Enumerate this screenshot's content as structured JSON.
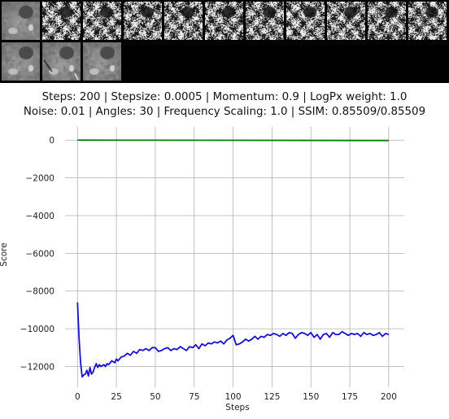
{
  "thumbnails": {
    "rows": [
      {
        "tiles": [
          "grayscale-source",
          "noise",
          "noise",
          "noise",
          "noise",
          "noise",
          "noise",
          "noise",
          "noise",
          "noise",
          "noise"
        ]
      },
      {
        "tiles": [
          "grayscale-source",
          "grayscale-source-annotated",
          "grayscale-source"
        ]
      }
    ]
  },
  "chart_data": {
    "type": "line",
    "title": "Steps: 200 | Stepsize: 0.0005 | Momentum: 0.9 | LogPx weight: 1.0",
    "subtitle": "Noise: 0.01 | Angles: 30 | Frequency Scaling: 1.0 | SSIM: 0.85509/0.85509",
    "xlabel": "Steps",
    "ylabel": "Score",
    "xlim": [
      -8,
      210
    ],
    "ylim": [
      -13100,
      700
    ],
    "xticks": [
      0,
      25,
      50,
      75,
      100,
      125,
      150,
      175,
      200
    ],
    "yticks": [
      0,
      -2000,
      -4000,
      -6000,
      -8000,
      -10000,
      -12000
    ],
    "grid": true,
    "series": [
      {
        "color": "#008000",
        "x": [
          0,
          200
        ],
        "y": [
          0,
          -20
        ]
      },
      {
        "color": "#1a0fd0",
        "x": [
          0,
          1,
          2,
          3,
          4,
          5,
          6,
          7,
          8,
          9,
          10,
          11,
          12,
          13,
          14,
          15,
          16,
          17,
          18,
          19,
          20,
          22,
          24,
          25,
          26,
          28,
          30,
          32,
          34,
          36,
          38,
          40,
          42,
          44,
          46,
          48,
          50,
          52,
          54,
          56,
          58,
          60,
          62,
          64,
          66,
          68,
          70,
          72,
          74,
          76,
          78,
          80,
          82,
          84,
          86,
          88,
          90,
          92,
          94,
          96,
          98,
          100,
          102,
          104,
          106,
          108,
          110,
          112,
          114,
          116,
          118,
          120,
          122,
          124,
          126,
          128,
          130,
          132,
          134,
          136,
          138,
          140,
          142,
          144,
          146,
          148,
          150,
          152,
          154,
          156,
          158,
          160,
          162,
          164,
          166,
          168,
          170,
          172,
          174,
          176,
          178,
          180,
          182,
          184,
          186,
          188,
          190,
          192,
          194,
          196,
          198,
          200
        ],
        "y": [
          -8600,
          -10500,
          -11800,
          -12550,
          -12450,
          -12400,
          -12200,
          -12500,
          -12050,
          -12400,
          -12300,
          -12050,
          -11850,
          -12050,
          -11900,
          -12000,
          -11950,
          -11900,
          -12000,
          -11850,
          -11900,
          -11700,
          -11800,
          -11600,
          -11700,
          -11500,
          -11450,
          -11300,
          -11400,
          -11200,
          -11300,
          -11100,
          -11150,
          -11050,
          -11150,
          -11000,
          -11000,
          -11200,
          -11150,
          -11050,
          -11000,
          -11150,
          -11050,
          -11100,
          -10950,
          -11050,
          -11150,
          -10950,
          -11000,
          -10850,
          -11050,
          -10800,
          -10900,
          -10750,
          -10800,
          -10700,
          -10750,
          -10650,
          -10800,
          -10600,
          -10500,
          -10350,
          -10850,
          -10800,
          -10700,
          -10550,
          -10650,
          -10550,
          -10400,
          -10550,
          -10400,
          -10450,
          -10300,
          -10350,
          -10250,
          -10300,
          -10400,
          -10250,
          -10350,
          -10200,
          -10250,
          -10500,
          -10300,
          -10200,
          -10250,
          -10350,
          -10200,
          -10450,
          -10300,
          -10550,
          -10300,
          -10250,
          -10450,
          -10200,
          -10300,
          -10300,
          -10150,
          -10250,
          -10350,
          -10250,
          -10300,
          -10250,
          -10400,
          -10200,
          -10300,
          -10250,
          -10350,
          -10300,
          -10200,
          -10400,
          -10250,
          -10300
        ]
      }
    ]
  }
}
